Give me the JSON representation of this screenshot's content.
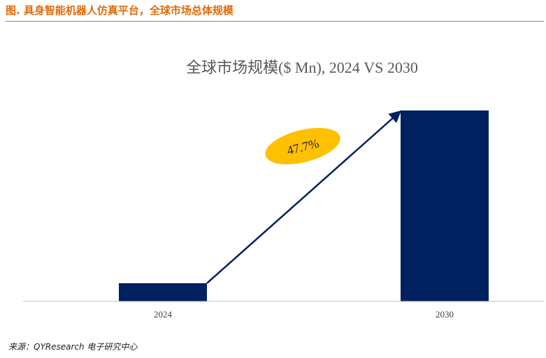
{
  "figure": {
    "title": "图.  具身智能机器人仿真平台，全球市场总体规模",
    "source": "来源：QYResearch 电子研究中心"
  },
  "chart_data": {
    "type": "bar",
    "title": "全球市场规模($ Mn), 2024 VS 2030",
    "categories": [
      "2024",
      "2030"
    ],
    "values": [
      9.5,
      100
    ],
    "ylim": [
      0,
      100
    ],
    "xlabel": "",
    "ylabel": "",
    "grid": false,
    "bar_color": "#002060",
    "annotation": {
      "label": "47.7%",
      "color": "#FFC000"
    }
  }
}
